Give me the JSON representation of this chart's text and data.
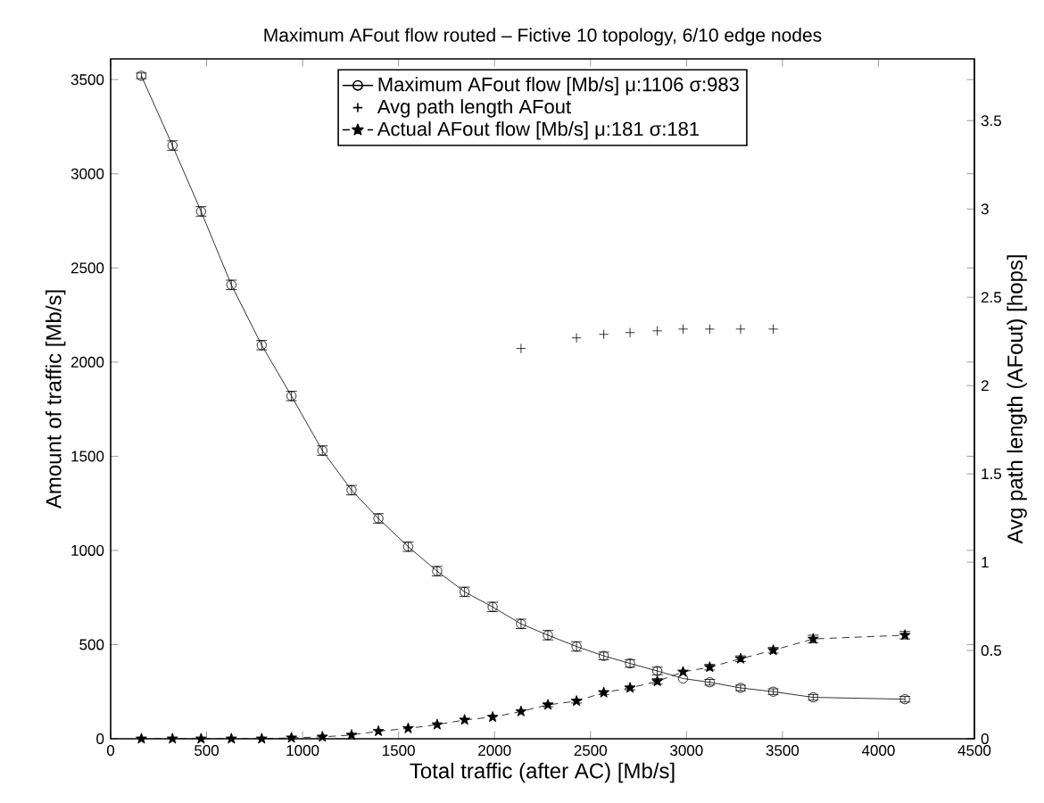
{
  "chart_data": {
    "type": "line",
    "title": "Maximum AFout flow routed – Fictive 10  topology, 6/10 edge nodes",
    "xlabel": "Total traffic (after AC) [Mb/s]",
    "ylabel": "Amount of traffic [Mb/s]",
    "y2label": "Avg path length (AFout) [hops]",
    "xlim": [
      0,
      4500
    ],
    "xticks": [
      0,
      500,
      1000,
      1500,
      2000,
      2500,
      3000,
      3500,
      4000,
      4500
    ],
    "ylim": [
      0,
      3610
    ],
    "yticks": [
      0,
      500,
      1000,
      1500,
      2000,
      2500,
      3000,
      3500
    ],
    "y2lim": [
      0,
      3.85
    ],
    "y2ticks": [
      0,
      0.5,
      1,
      1.5,
      2,
      2.5,
      3,
      3.5
    ],
    "legend": "top",
    "grid": false,
    "series": [
      {
        "name": "Maximum AFout flow [Mb/s] μ:1106 σ:983",
        "color": "#000000",
        "marker": "circle",
        "line_style": "solid",
        "x": [
          160,
          322,
          471,
          629,
          787,
          942,
          1103,
          1255,
          1395,
          1550,
          1701,
          1844,
          1990,
          2138,
          2278,
          2427,
          2569,
          2706,
          2848,
          2982,
          3121,
          3282,
          3452,
          3660,
          4138
        ],
        "values": [
          3520,
          3150,
          2800,
          2410,
          2090,
          1820,
          1530,
          1320,
          1170,
          1020,
          890,
          780,
          700,
          610,
          550,
          490,
          440,
          400,
          360,
          320,
          300,
          270,
          250,
          220,
          210
        ],
        "errors": [
          15,
          25,
          25,
          25,
          25,
          25,
          25,
          25,
          25,
          25,
          25,
          25,
          25,
          25,
          25,
          25,
          20,
          20,
          20,
          null,
          15,
          15,
          15,
          15,
          15
        ]
      },
      {
        "name": "Avg path length AFout",
        "color": "#000000",
        "type": "scatter",
        "marker": "cross",
        "axis": "y2",
        "x": [
          2138,
          2427,
          2569,
          2706,
          2848,
          2982,
          3121,
          3282,
          3452
        ],
        "values": [
          2.21,
          2.27,
          2.29,
          2.3,
          2.31,
          2.32,
          2.32,
          2.32,
          2.32
        ]
      },
      {
        "name": "Actual AFout flow [Mb/s] μ:181 σ:181",
        "color": "#000000",
        "marker": "star",
        "line_style": "dashed",
        "x": [
          160,
          322,
          471,
          629,
          787,
          942,
          1103,
          1255,
          1395,
          1550,
          1701,
          1844,
          1990,
          2138,
          2278,
          2427,
          2569,
          2706,
          2848,
          2982,
          3121,
          3282,
          3452,
          3660,
          4138
        ],
        "values": [
          0,
          0,
          0,
          0,
          0,
          5,
          10,
          20,
          40,
          55,
          75,
          100,
          115,
          145,
          180,
          200,
          245,
          270,
          305,
          355,
          380,
          425,
          470,
          530,
          550
        ],
        "errors": [
          null,
          null,
          null,
          null,
          null,
          null,
          null,
          null,
          null,
          null,
          null,
          null,
          null,
          null,
          10,
          10,
          10,
          10,
          15,
          null,
          15,
          15,
          15,
          20,
          20
        ]
      }
    ]
  }
}
